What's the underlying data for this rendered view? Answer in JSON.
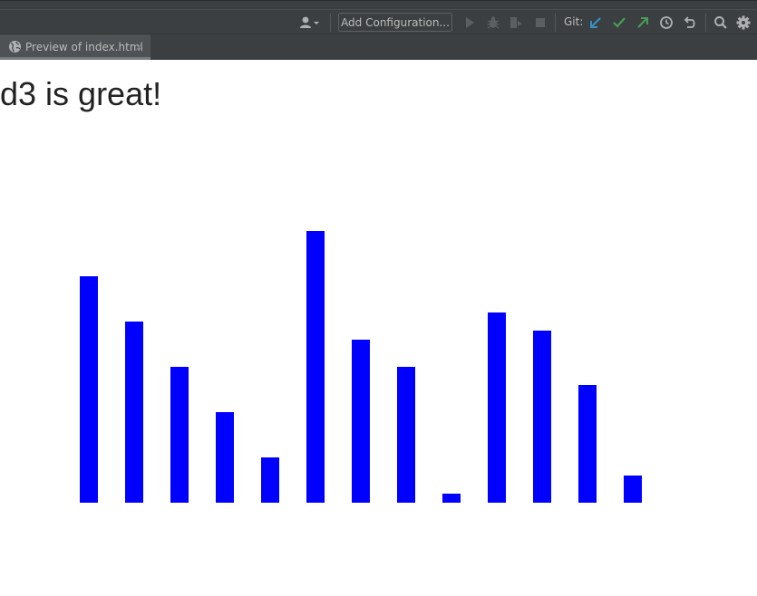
{
  "toolbar": {
    "add_configuration_label": "Add Configuration...",
    "git_label": "Git:",
    "icons": [
      "user-icon",
      "run-icon",
      "debug-icon",
      "coverage-icon",
      "stop-icon",
      "git-update-icon",
      "git-commit-icon",
      "git-push-icon",
      "history-icon",
      "rollback-icon",
      "search-icon",
      "settings-icon"
    ]
  },
  "tab": {
    "label": "Preview of index.html",
    "close_glyph": "×"
  },
  "page": {
    "title": "d3 is great!"
  },
  "chart_data": {
    "type": "bar",
    "values": [
      25,
      20,
      15,
      10,
      5,
      30,
      18,
      15,
      1,
      21,
      19,
      13,
      3
    ],
    "color": "#0000ff",
    "ylim": [
      0,
      30
    ],
    "grid": false,
    "axes": false
  }
}
